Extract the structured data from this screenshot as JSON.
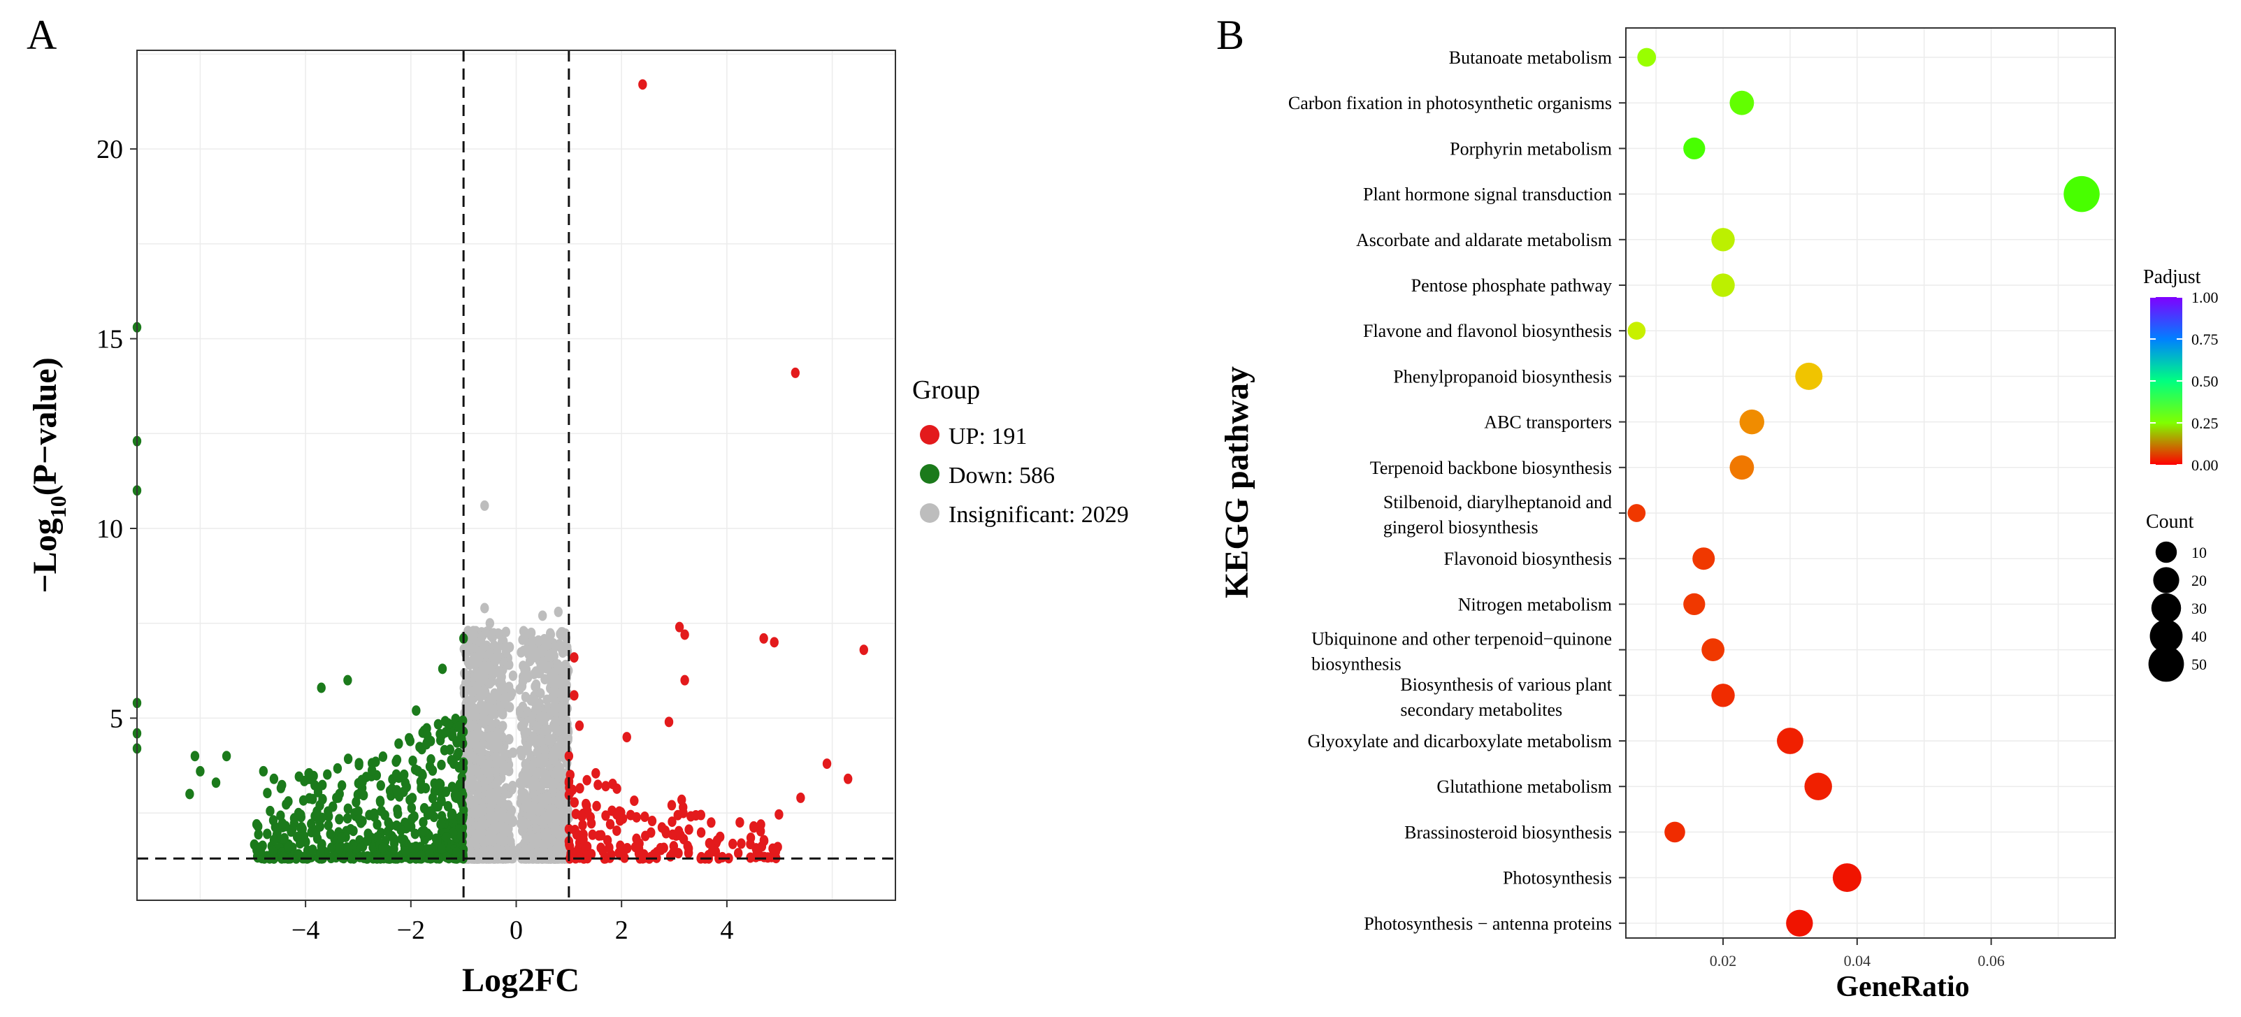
{
  "chart_data": [
    {
      "type": "scatter",
      "panel_label": "A",
      "xlabel": "Log2FC",
      "ylabel_main": "−Log",
      "ylabel_sub": "10",
      "ylabel_tail": "(P−value)",
      "xlim": [
        -7.2,
        7.2
      ],
      "ylim": [
        0.2,
        22.6
      ],
      "x_ticks": [
        {
          "value": -4,
          "label": "−4"
        },
        {
          "value": -2,
          "label": "−2"
        },
        {
          "value": 0,
          "label": "0"
        },
        {
          "value": 2,
          "label": "2"
        },
        {
          "value": 4,
          "label": "4"
        }
      ],
      "y_ticks": [
        {
          "value": 5,
          "label": "5"
        },
        {
          "value": 10,
          "label": "10"
        },
        {
          "value": 15,
          "label": "15"
        },
        {
          "value": 20,
          "label": "20"
        }
      ],
      "thresholds": {
        "log2fc": [
          -1,
          1
        ],
        "p_line": 1.3
      },
      "legend": {
        "title": "Group",
        "items": [
          {
            "label": "UP: 191",
            "color": "#e31a1c"
          },
          {
            "label": "Down: 586",
            "color": "#1b7a1b"
          },
          {
            "label": "Insignificant: 2029",
            "color": "#bdbdbd"
          }
        ]
      },
      "series": [
        {
          "name": "UP",
          "count": 191,
          "color": "#e31a1c",
          "highlight_points": [
            [
              2.4,
              21.7
            ],
            [
              5.3,
              14.1
            ],
            [
              6.6,
              6.8
            ],
            [
              4.7,
              7.1
            ],
            [
              4.9,
              7.0
            ],
            [
              3.1,
              7.4
            ],
            [
              3.2,
              7.2
            ],
            [
              3.2,
              6.0
            ],
            [
              2.9,
              4.9
            ],
            [
              1.1,
              6.6
            ],
            [
              1.2,
              4.8
            ],
            [
              2.1,
              4.5
            ],
            [
              5.9,
              3.8
            ],
            [
              6.3,
              3.4
            ],
            [
              5.4,
              2.9
            ],
            [
              1.1,
              5.6
            ],
            [
              1.0,
              4.0
            ],
            [
              1.0,
              3.3
            ]
          ],
          "bulk_region": {
            "x": [
              1.0,
              5.1
            ],
            "y": [
              1.3,
              3.6
            ]
          }
        },
        {
          "name": "Down",
          "count": 586,
          "color": "#1b7a1b",
          "highlight_points": [
            [
              -7.2,
              15.3
            ],
            [
              -7.2,
              12.3
            ],
            [
              -7.2,
              11.0
            ],
            [
              -7.2,
              5.4
            ],
            [
              -7.2,
              4.6
            ],
            [
              -7.2,
              4.2
            ],
            [
              -3.2,
              6.0
            ],
            [
              -3.7,
              5.8
            ],
            [
              -1.4,
              6.3
            ],
            [
              -1.9,
              5.2
            ],
            [
              -1.0,
              7.1
            ],
            [
              -4.8,
              3.6
            ],
            [
              -5.5,
              4.0
            ],
            [
              -6.1,
              4.0
            ],
            [
              -6.0,
              3.6
            ],
            [
              -4.6,
              3.4
            ],
            [
              -5.7,
              3.3
            ],
            [
              -6.2,
              3.0
            ]
          ],
          "bulk_region": {
            "x": [
              -5.0,
              -1.0
            ],
            "y": [
              1.3,
              5.2
            ]
          }
        },
        {
          "name": "Insignificant",
          "count": 2029,
          "color": "#bdbdbd",
          "highlight_points": [
            [
              -0.6,
              10.6
            ],
            [
              -0.6,
              7.9
            ],
            [
              0.8,
              7.8
            ],
            [
              0.5,
              7.7
            ],
            [
              -0.5,
              7.5
            ],
            [
              -0.8,
              7.2
            ],
            [
              0.3,
              7.0
            ],
            [
              -0.4,
              6.5
            ],
            [
              0.7,
              5.6
            ]
          ],
          "bulk_region": {
            "x": [
              -1.0,
              1.0
            ],
            "y": [
              1.3,
              7.5
            ]
          }
        }
      ]
    },
    {
      "type": "bubble",
      "panel_label": "B",
      "xlabel": "GeneRatio",
      "ylabel": "KEGG pathway",
      "xlim": [
        0.0055,
        0.0785
      ],
      "x_ticks": [
        {
          "value": 0.02,
          "label": "0.02"
        },
        {
          "value": 0.04,
          "label": "0.04"
        },
        {
          "value": 0.06,
          "label": "0.06"
        }
      ],
      "categories": [
        [
          "Butanoate metabolism"
        ],
        [
          "Carbon fixation in photosynthetic organisms"
        ],
        [
          "Porphyrin metabolism"
        ],
        [
          "Plant hormone signal transduction"
        ],
        [
          "Ascorbate and aldarate metabolism"
        ],
        [
          "Pentose phosphate pathway"
        ],
        [
          "Flavone and flavonol biosynthesis"
        ],
        [
          "Phenylpropanoid biosynthesis"
        ],
        [
          "ABC transporters"
        ],
        [
          "Terpenoid backbone biosynthesis"
        ],
        [
          "Stilbenoid, diarylheptanoid and",
          "gingerol biosynthesis"
        ],
        [
          "Flavonoid biosynthesis"
        ],
        [
          "Nitrogen metabolism"
        ],
        [
          "Ubiquinone and other terpenoid−quinone",
          "biosynthesis"
        ],
        [
          "Biosynthesis of various plant",
          "secondary metabolites"
        ],
        [
          "Glyoxylate and dicarboxylate metabolism"
        ],
        [
          "Glutathione metabolism"
        ],
        [
          "Brassinosteroid biosynthesis"
        ],
        [
          "Photosynthesis"
        ],
        [
          "Photosynthesis − antenna proteins"
        ]
      ],
      "gene_ratio": [
        0.0086,
        0.0228,
        0.0157,
        0.0735,
        0.02,
        0.02,
        0.0071,
        0.0328,
        0.0243,
        0.0228,
        0.0071,
        0.0171,
        0.0157,
        0.0185,
        0.02,
        0.03,
        0.0342,
        0.0128,
        0.0385,
        0.0314
      ],
      "count": [
        6,
        16,
        11,
        52,
        14,
        14,
        5,
        23,
        17,
        16,
        5,
        12,
        11,
        13,
        14,
        21,
        24,
        9,
        27,
        22
      ],
      "padjust": [
        0.31,
        0.36,
        0.38,
        0.38,
        0.27,
        0.27,
        0.26,
        0.18,
        0.13,
        0.11,
        0.05,
        0.05,
        0.05,
        0.05,
        0.04,
        0.03,
        0.03,
        0.04,
        0.02,
        0.02
      ],
      "legend_padjust": {
        "title": "Padjust",
        "ticks": [
          "1.00",
          "0.75",
          "0.50",
          "0.25",
          "0.00"
        ],
        "range": [
          0,
          1
        ]
      },
      "legend_count": {
        "title": "Count",
        "values": [
          10,
          20,
          30,
          40,
          50
        ],
        "labels": [
          "10",
          "20",
          "30",
          "40",
          "50"
        ]
      }
    }
  ]
}
